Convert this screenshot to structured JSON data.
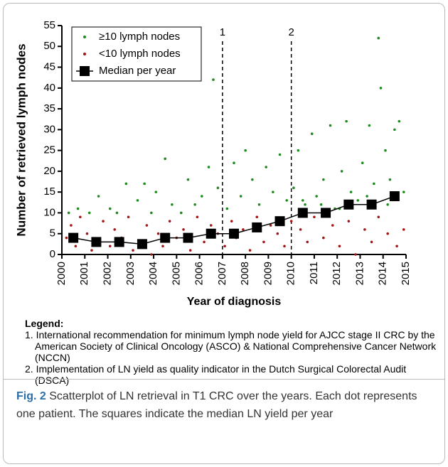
{
  "chart_data": {
    "type": "scatter",
    "xlabel": "Year of diagnosis",
    "ylabel": "Number of retrieved lymph nodes",
    "xlim": [
      2000,
      2015
    ],
    "xticks": [
      2000,
      2001,
      2002,
      2003,
      2004,
      2005,
      2006,
      2007,
      2008,
      2009,
      2010,
      2011,
      2012,
      2013,
      2014,
      2015
    ],
    "ylim": [
      0,
      55
    ],
    "yticks": [
      0,
      5,
      10,
      15,
      20,
      25,
      30,
      35,
      40,
      45,
      50,
      55
    ],
    "legend": "upper left",
    "series": [
      {
        "name": "≥10 lymph nodes",
        "color": "#1f8a1f",
        "marker": "dot",
        "x": [
          2000.3,
          2000.7,
          2001.2,
          2001.6,
          2002.1,
          2002.4,
          2002.8,
          2003.3,
          2003.6,
          2003.9,
          2004.1,
          2004.5,
          2004.8,
          2005.2,
          2005.5,
          2005.8,
          2006.1,
          2006.4,
          2006.6,
          2006.8,
          2007.2,
          2007.5,
          2007.8,
          2008.0,
          2008.3,
          2008.6,
          2008.9,
          2009.2,
          2009.5,
          2009.8,
          2010.1,
          2010.3,
          2010.6,
          2010.9,
          2011.1,
          2011.4,
          2011.7,
          2011.9,
          2012.2,
          2012.4,
          2012.6,
          2012.9,
          2013.1,
          2013.4,
          2013.6,
          2013.8,
          2013.9,
          2014.1,
          2014.3,
          2014.5,
          2014.7,
          2014.9,
          2014.2,
          2013.3,
          2012.1,
          2011.3,
          2010.5
        ],
        "y": [
          10,
          11,
          10,
          14,
          11,
          10,
          17,
          13,
          17,
          10,
          15,
          23,
          12,
          10,
          18,
          12,
          14,
          21,
          42,
          16,
          11,
          22,
          14,
          25,
          18,
          12,
          21,
          15,
          24,
          13,
          16,
          25,
          12,
          29,
          14,
          18,
          31,
          11,
          20,
          32,
          15,
          13,
          22,
          31,
          17,
          52,
          40,
          25,
          18,
          30,
          32,
          15,
          12,
          14,
          11,
          12,
          13
        ]
      },
      {
        "name": "<10 lymph nodes",
        "color": "#a31515",
        "marker": "dot",
        "x": [
          2000.2,
          2000.4,
          2000.6,
          2000.8,
          2001.1,
          2001.3,
          2001.5,
          2001.8,
          2002.1,
          2002.3,
          2002.6,
          2002.9,
          2003.1,
          2003.4,
          2003.7,
          2003.9,
          2004.2,
          2004.4,
          2004.7,
          2005.0,
          2005.3,
          2005.6,
          2005.9,
          2006.2,
          2006.5,
          2006.8,
          2007.1,
          2007.4,
          2007.6,
          2007.9,
          2008.2,
          2008.5,
          2008.8,
          2009.1,
          2009.4,
          2009.7,
          2010.0,
          2010.4,
          2010.7,
          2011.0,
          2011.4,
          2011.8,
          2012.1,
          2012.5,
          2012.8,
          2013.2,
          2013.5,
          2013.8,
          2014.2,
          2014.6,
          2014.9
        ],
        "y": [
          4,
          7,
          2,
          9,
          5,
          1,
          3,
          8,
          2,
          6,
          4,
          9,
          1,
          3,
          7,
          0,
          5,
          2,
          8,
          4,
          6,
          1,
          9,
          3,
          7,
          5,
          2,
          8,
          4,
          6,
          1,
          9,
          3,
          7,
          5,
          2,
          8,
          6,
          3,
          9,
          4,
          7,
          2,
          8,
          0,
          6,
          3,
          9,
          5,
          2,
          6
        ]
      },
      {
        "name": "Median per year",
        "color": "#000000",
        "marker": "square",
        "line": true,
        "x": [
          2000.5,
          2001.5,
          2002.5,
          2003.5,
          2004.5,
          2005.5,
          2006.5,
          2007.5,
          2008.5,
          2009.5,
          2010.5,
          2011.5,
          2012.5,
          2013.5,
          2014.5
        ],
        "y": [
          4,
          3,
          3,
          2.5,
          4,
          4,
          5,
          5,
          6.5,
          8,
          10,
          10,
          12,
          12,
          14
        ]
      }
    ],
    "annotations": [
      {
        "x": 2007,
        "label": "1"
      },
      {
        "x": 2010,
        "label": "2"
      }
    ]
  },
  "notes": {
    "heading": "Legend:",
    "items": [
      "1. International recommendation for minimum lymph node yield for AJCC stage II CRC by the American Society of Clinical Oncology (ASCO) & National Comprehensive Cancer Network (NCCN)",
      "2. Implementation of LN yield as quality indicator in the Dutch Surgical Colorectal Audit (DSCA)"
    ]
  },
  "caption": {
    "label": "Fig. 2",
    "text": "Scatterplot of LN retrieval in T1 CRC over the years. Each dot represents one patient. The squares indicate the median LN yield per year"
  }
}
